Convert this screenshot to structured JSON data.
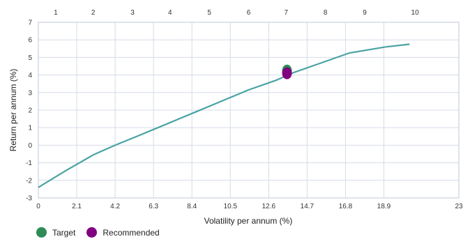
{
  "chart_data": {
    "type": "line",
    "xlabel": "Volatility per annum (%)",
    "ylabel": "Return per annum (%)",
    "xlim": [
      0,
      23
    ],
    "ylim": [
      -3,
      7
    ],
    "x_ticks": [
      "0",
      "2.1",
      "4.2",
      "6.3",
      "8.4",
      "10.5",
      "12.6",
      "14.7",
      "16.8",
      "18.9",
      "23"
    ],
    "x_tick_values": [
      0,
      2.1,
      4.2,
      6.3,
      8.4,
      10.5,
      12.6,
      14.7,
      16.8,
      18.9,
      23
    ],
    "y_ticks": [
      -3,
      -2,
      -1,
      0,
      1,
      2,
      3,
      4,
      5,
      6,
      7
    ],
    "top_axis": {
      "labels": [
        "1",
        "2",
        "3",
        "4",
        "5",
        "6",
        "7",
        "8",
        "9",
        "10"
      ],
      "positions": [
        0.95,
        3.0,
        5.15,
        7.2,
        9.35,
        11.5,
        13.55,
        15.7,
        17.85,
        20.6
      ]
    },
    "grid": true,
    "legend_position": "bottom-left",
    "series": [
      {
        "x": [
          0,
          1.5,
          3,
          4.2,
          5.5,
          7,
          8.5,
          10,
          11.5,
          13,
          14,
          15.5,
          17,
          19,
          20.3
        ],
        "y": [
          -2.4,
          -1.45,
          -0.55,
          0,
          0.55,
          1.2,
          1.85,
          2.5,
          3.15,
          3.7,
          4.15,
          4.7,
          5.25,
          5.6,
          5.75
        ],
        "color": "#4aa3a3"
      }
    ],
    "points": [
      {
        "name": "Target",
        "x": 13.6,
        "y": 4.25,
        "color": "#2e8b57"
      },
      {
        "name": "Recommended",
        "x": 13.6,
        "y": 4.1,
        "color": "#800080"
      }
    ]
  },
  "legend": {
    "items": [
      {
        "label": "Target",
        "color": "#2e8b57"
      },
      {
        "label": "Recommended",
        "color": "#800080"
      }
    ]
  }
}
